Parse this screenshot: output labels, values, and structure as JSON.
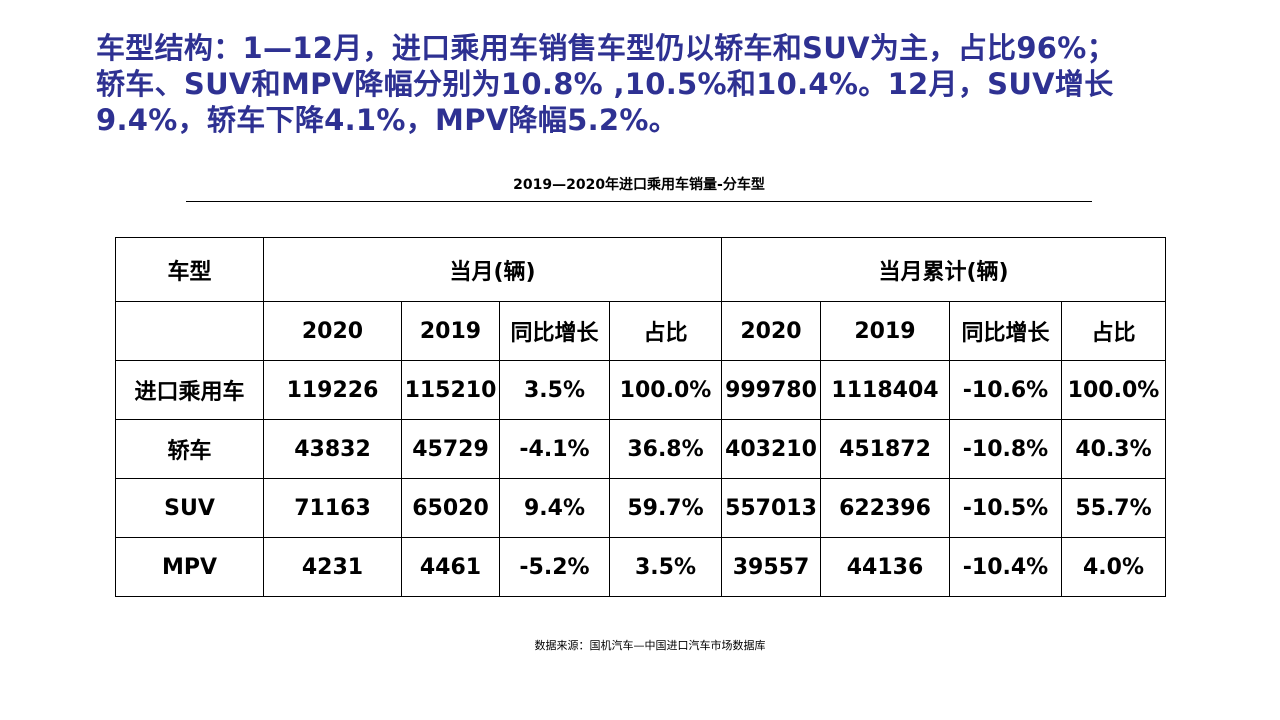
{
  "headline": {
    "line1": "车型结构：1—12月，进口乘用车销售车型仍以轿车和SUV为主，占比96%；",
    "line2": "轿车、SUV和MPV降幅分别为10.8% ,10.5%和10.4%。12月，SUV增长",
    "line3": "9.4%，轿车下降4.1%，MPV降幅5.2%。"
  },
  "table_title": "2019—2020年进口乘用车销量-分车型",
  "table": {
    "col_type": "车型",
    "group_month": "当月(辆)",
    "group_cumulative": "当月累计(辆)",
    "sub_headers": [
      "2020",
      "2019",
      "同比增长",
      "占比",
      "2020",
      "2019",
      "同比增长",
      "占比"
    ],
    "rows": [
      {
        "type": "进口乘用车",
        "values": [
          "119226",
          "115210",
          "3.5%",
          "100.0%",
          "999780",
          "1118404",
          "-10.6%",
          "100.0%"
        ]
      },
      {
        "type": "轿车",
        "values": [
          "43832",
          "45729",
          "-4.1%",
          "36.8%",
          "403210",
          "451872",
          "-10.8%",
          "40.3%"
        ]
      },
      {
        "type": "SUV",
        "values": [
          "71163",
          "65020",
          "9.4%",
          "59.7%",
          "557013",
          "622396",
          "-10.5%",
          "55.7%"
        ]
      },
      {
        "type": "MPV",
        "values": [
          "4231",
          "4461",
          "-5.2%",
          "3.5%",
          "39557",
          "44136",
          "-10.4%",
          "4.0%"
        ]
      }
    ]
  },
  "source": "数据来源：国机汽车—中国进口汽车市场数据库",
  "colors": {
    "headline": "#2e3192",
    "text": "#000000",
    "background": "#ffffff"
  }
}
